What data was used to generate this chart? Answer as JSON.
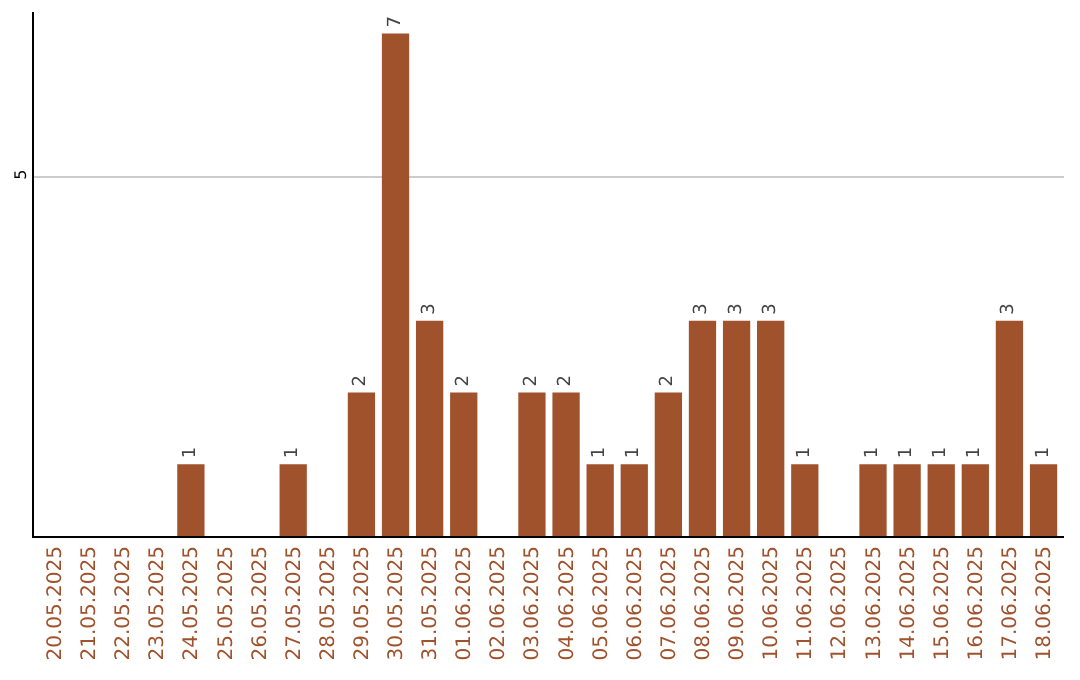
{
  "chart_data": {
    "type": "bar",
    "categories": [
      "20.05.2025",
      "21.05.2025",
      "22.05.2025",
      "23.05.2025",
      "24.05.2025",
      "25.05.2025",
      "26.05.2025",
      "27.05.2025",
      "28.05.2025",
      "29.05.2025",
      "30.05.2025",
      "31.05.2025",
      "01.06.2025",
      "02.06.2025",
      "03.06.2025",
      "04.06.2025",
      "05.06.2025",
      "06.06.2025",
      "07.06.2025",
      "08.06.2025",
      "09.06.2025",
      "10.06.2025",
      "11.06.2025",
      "12.06.2025",
      "13.06.2025",
      "14.06.2025",
      "15.06.2025",
      "16.06.2025",
      "17.06.2025",
      "18.06.2025"
    ],
    "values": [
      0,
      0,
      0,
      0,
      1,
      0,
      0,
      1,
      0,
      2,
      7,
      3,
      2,
      0,
      2,
      2,
      1,
      1,
      2,
      3,
      3,
      3,
      1,
      0,
      1,
      1,
      1,
      1,
      3,
      1
    ],
    "value_labels": [
      null,
      null,
      null,
      null,
      "1",
      null,
      null,
      "1",
      null,
      "2",
      "7",
      "3",
      "2",
      null,
      "2",
      "2",
      "1",
      "1",
      "2",
      "3",
      "3",
      "3",
      "1",
      null,
      "1",
      "1",
      "1",
      "1",
      "3",
      "1"
    ],
    "color": "#a0522d",
    "ylim": [
      0,
      7.3
    ],
    "yticks": [
      5
    ],
    "grid": "y"
  }
}
